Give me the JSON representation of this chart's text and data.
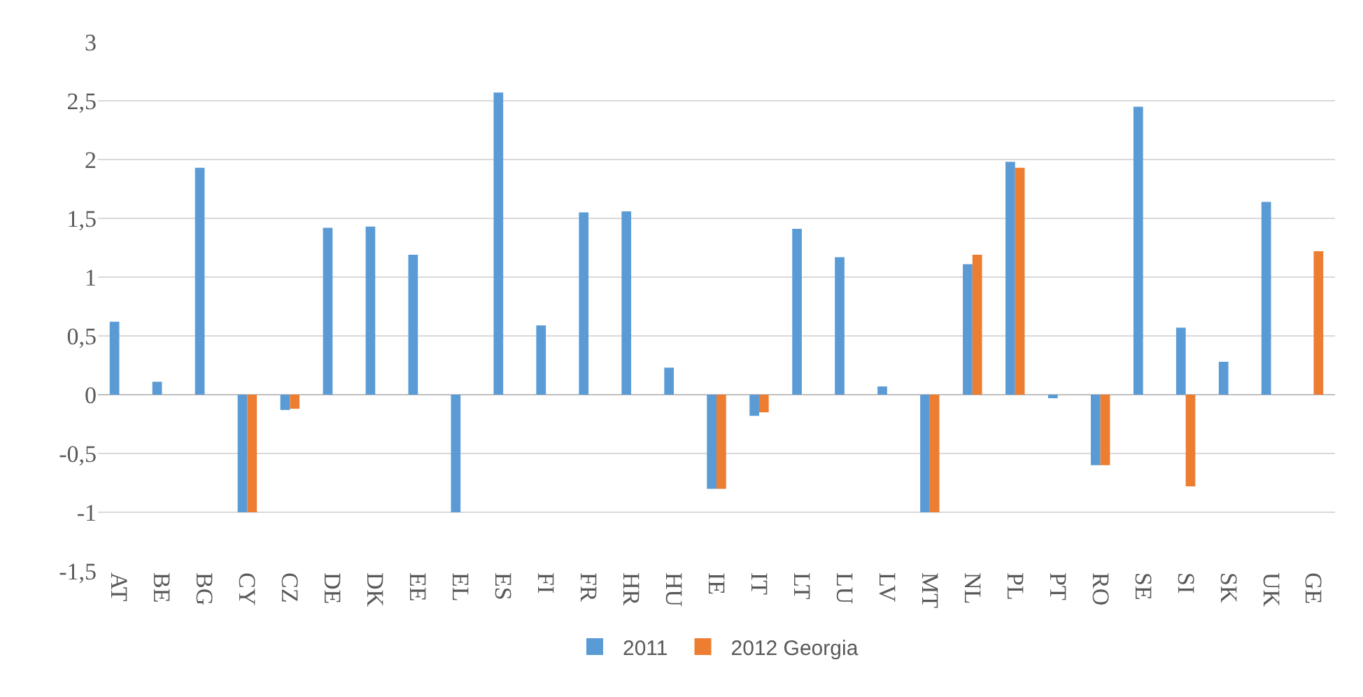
{
  "chart_data": {
    "type": "bar",
    "categories": [
      "AT",
      "BE",
      "BG",
      "CY",
      "CZ",
      "DE",
      "DK",
      "EE",
      "EL",
      "ES",
      "FI",
      "FR",
      "HR",
      "HU",
      "IE",
      "IT",
      "LT",
      "LU",
      "LV",
      "MT",
      "NL",
      "PL",
      "PT",
      "RO",
      "SE",
      "SI",
      "SK",
      "UK",
      "GE"
    ],
    "series": [
      {
        "name": "2011",
        "color": "#5b9bd5",
        "values": [
          0.62,
          0.11,
          1.93,
          -1,
          -0.13,
          1.42,
          1.43,
          1.19,
          -1,
          2.57,
          0.59,
          1.55,
          1.56,
          0.23,
          -0.8,
          -0.18,
          1.41,
          1.17,
          0.07,
          -1,
          1.11,
          1.98,
          -0.03,
          -0.6,
          2.45,
          0.57,
          0.28,
          1.64,
          null
        ]
      },
      {
        "name": "2012 Georgia",
        "color": "#ed7d31",
        "values": [
          null,
          null,
          null,
          -1,
          -0.12,
          null,
          null,
          null,
          null,
          null,
          null,
          null,
          null,
          null,
          -0.8,
          -0.15,
          null,
          null,
          null,
          -1,
          1.19,
          1.93,
          null,
          -0.6,
          null,
          -0.78,
          null,
          null,
          1.22
        ]
      }
    ],
    "ylim": [
      -1.5,
      3
    ],
    "yticks": [
      {
        "value": -1.5,
        "label": "-1,5"
      },
      -1,
      {
        "value": -0.5,
        "label": "-0,5"
      },
      0,
      {
        "value": 0.5,
        "label": "0,5"
      },
      1,
      {
        "value": 1.5,
        "label": "1,5"
      },
      2,
      {
        "value": 2.5,
        "label": "2,5"
      },
      3
    ],
    "grid": "y",
    "legend": "bottom"
  }
}
